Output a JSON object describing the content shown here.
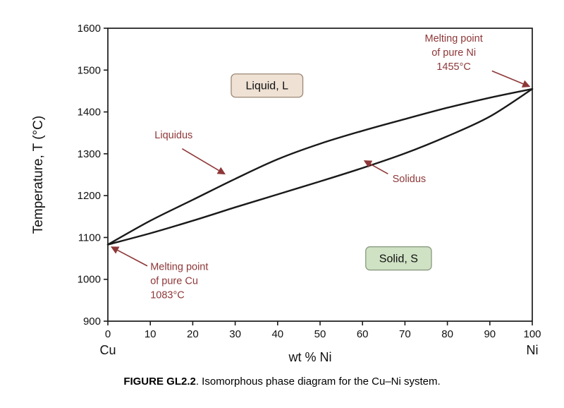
{
  "figure": {
    "caption_bold": "FIGURE GL2.2",
    "caption_rest": ". Isomorphous phase diagram for the Cu–Ni system."
  },
  "chart_data": {
    "type": "line",
    "title": "",
    "xlabel": "wt % Ni",
    "ylabel": "Temperature, T (°C)",
    "xlim": [
      0,
      100
    ],
    "ylim": [
      900,
      1600
    ],
    "x_ticks": [
      0,
      10,
      20,
      30,
      40,
      50,
      60,
      70,
      80,
      90,
      100
    ],
    "y_ticks": [
      900,
      1000,
      1100,
      1200,
      1300,
      1400,
      1500,
      1600
    ],
    "x_end_labels": {
      "left": "Cu",
      "right": "Ni"
    },
    "grid": false,
    "curve_color": "#1a1a1a",
    "annotation_color": "#8e3738",
    "series": [
      {
        "name": "Liquidus",
        "x": [
          0,
          10,
          20,
          30,
          40,
          50,
          60,
          70,
          80,
          90,
          100
        ],
        "values": [
          1083,
          1140,
          1190,
          1240,
          1287,
          1324,
          1355,
          1383,
          1410,
          1434,
          1455
        ]
      },
      {
        "name": "Solidus",
        "x": [
          0,
          10,
          20,
          30,
          40,
          50,
          60,
          70,
          80,
          90,
          100
        ],
        "values": [
          1083,
          1110,
          1140,
          1172,
          1203,
          1234,
          1266,
          1301,
          1342,
          1389,
          1455
        ]
      }
    ],
    "region_labels": [
      {
        "id": "liquid-region",
        "text": "Liquid, L",
        "x": 37.5,
        "y": 1463,
        "fill": "#efe1d4",
        "border": "#9b8776"
      },
      {
        "id": "solid-region",
        "text": "Solid, S",
        "x": 68.5,
        "y": 1050,
        "fill": "#cfe2c4",
        "border": "#88997f"
      }
    ],
    "annotations": [
      {
        "id": "liquidus-label",
        "lines": [
          "Liquidus"
        ],
        "x": 15.5,
        "y": 1337,
        "anchor": "middle",
        "arrow": {
          "x1": 17.5,
          "y1": 1312,
          "x2": 27.5,
          "y2": 1252
        }
      },
      {
        "id": "solidus-label",
        "lines": [
          "Solidus"
        ],
        "x": 71,
        "y": 1232,
        "anchor": "middle",
        "arrow": {
          "x1": 66,
          "y1": 1252,
          "x2": 60.5,
          "y2": 1283
        }
      },
      {
        "id": "melting-point-ni",
        "lines": [
          "Melting point",
          "of pure Ni",
          "1455°C"
        ],
        "x": 81.5,
        "y": 1568,
        "anchor": "middle",
        "arrow": {
          "x1": 90.5,
          "y1": 1498,
          "x2": 99.3,
          "y2": 1461
        }
      },
      {
        "id": "melting-point-cu",
        "lines": [
          "Melting point",
          "of pure Cu",
          "1083°C"
        ],
        "x": 10,
        "y": 1022,
        "anchor": "start",
        "arrow": {
          "x1": 9.3,
          "y1": 1032,
          "x2": 0.9,
          "y2": 1077
        }
      }
    ]
  }
}
